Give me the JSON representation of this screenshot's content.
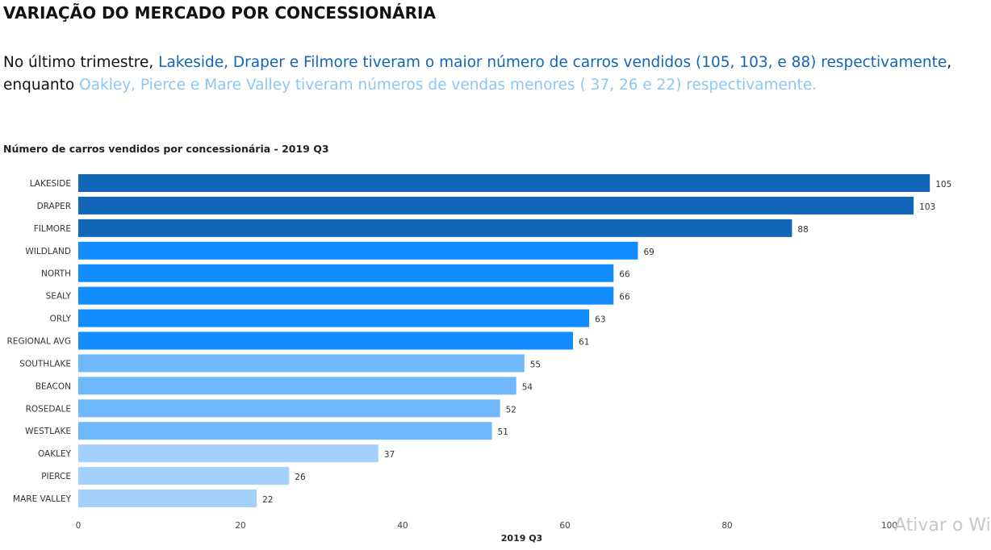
{
  "title": "VARIAÇÃO DO MERCADO POR CONCESSIONÁRIA",
  "intro": {
    "p1": "No último  trimestre, ",
    "p2": "Lakeside, Draper e Filmore tiveram o maior número de carros vendidos (105, 103, e 88) respectivamente",
    "p3": ",",
    "p4": "enquanto ",
    "p5": "Oakley, Pierce e Mare Valley tiveram números de vendas menores ( 37, 26 e 22) respectivamente."
  },
  "watermark": "Ativar o Wi",
  "colors": {
    "dark": "#1266b8",
    "mid": "#118dff",
    "light": "#6fb8fc",
    "pale": "#a3d0fc"
  },
  "chart_data": {
    "type": "bar",
    "orientation": "horizontal",
    "title": "Número de carros vendidos por concessionária - 2019 Q3",
    "xlabel": "2019 Q3",
    "ylabel": "",
    "xlim": [
      0,
      100
    ],
    "xticks": [
      0,
      20,
      40,
      60,
      80,
      100
    ],
    "grid": false,
    "categories": [
      "LAKESIDE",
      "DRAPER",
      "FILMORE",
      "WILDLAND",
      "NORTH",
      "SEALY",
      "ORLY",
      "REGIONAL AVG",
      "SOUTHLAKE",
      "BEACON",
      "ROSEDALE",
      "WESTLAKE",
      "OAKLEY",
      "PIERCE",
      "MARE VALLEY"
    ],
    "values": [
      105,
      103,
      88,
      69,
      66,
      66,
      63,
      61,
      55,
      54,
      52,
      51,
      37,
      26,
      22
    ],
    "bar_colors": [
      "#1266b8",
      "#1266b8",
      "#1266b8",
      "#118dff",
      "#118dff",
      "#118dff",
      "#118dff",
      "#118dff",
      "#6fb8fc",
      "#6fb8fc",
      "#6fb8fc",
      "#6fb8fc",
      "#a3d0fc",
      "#a3d0fc",
      "#a3d0fc"
    ]
  }
}
